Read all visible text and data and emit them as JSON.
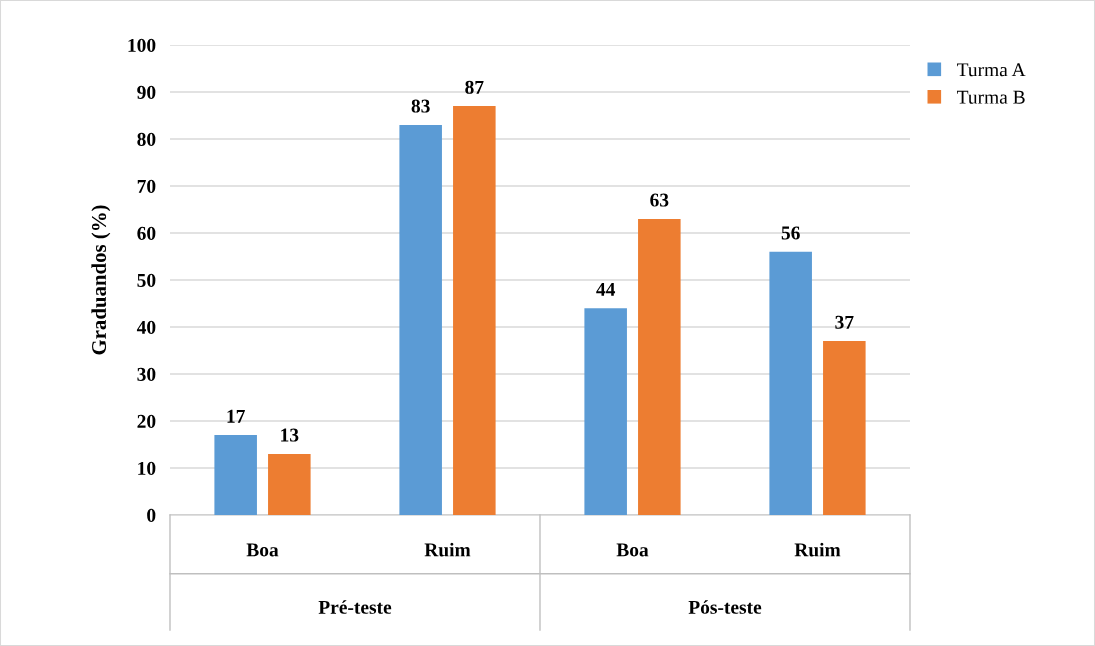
{
  "chart_data": {
    "type": "bar",
    "ylabel": "Graduandos (%)",
    "categories": [
      "Boa",
      "Ruim",
      "Boa",
      "Ruim"
    ],
    "annotations": [
      "Pré-teste",
      "Pós-teste"
    ],
    "series": [
      {
        "name": "Turma A",
        "color": "#5b9bd5",
        "values": [
          17,
          83,
          44,
          56
        ]
      },
      {
        "name": "Turma B",
        "color": "#ed7d31",
        "values": [
          13,
          87,
          63,
          37
        ]
      }
    ],
    "ylim": [
      0,
      100
    ],
    "yticks": [
      0,
      10,
      20,
      30,
      40,
      50,
      60,
      70,
      80,
      90,
      100
    ],
    "grid": "y",
    "legend": "top right",
    "data_labels": true
  }
}
